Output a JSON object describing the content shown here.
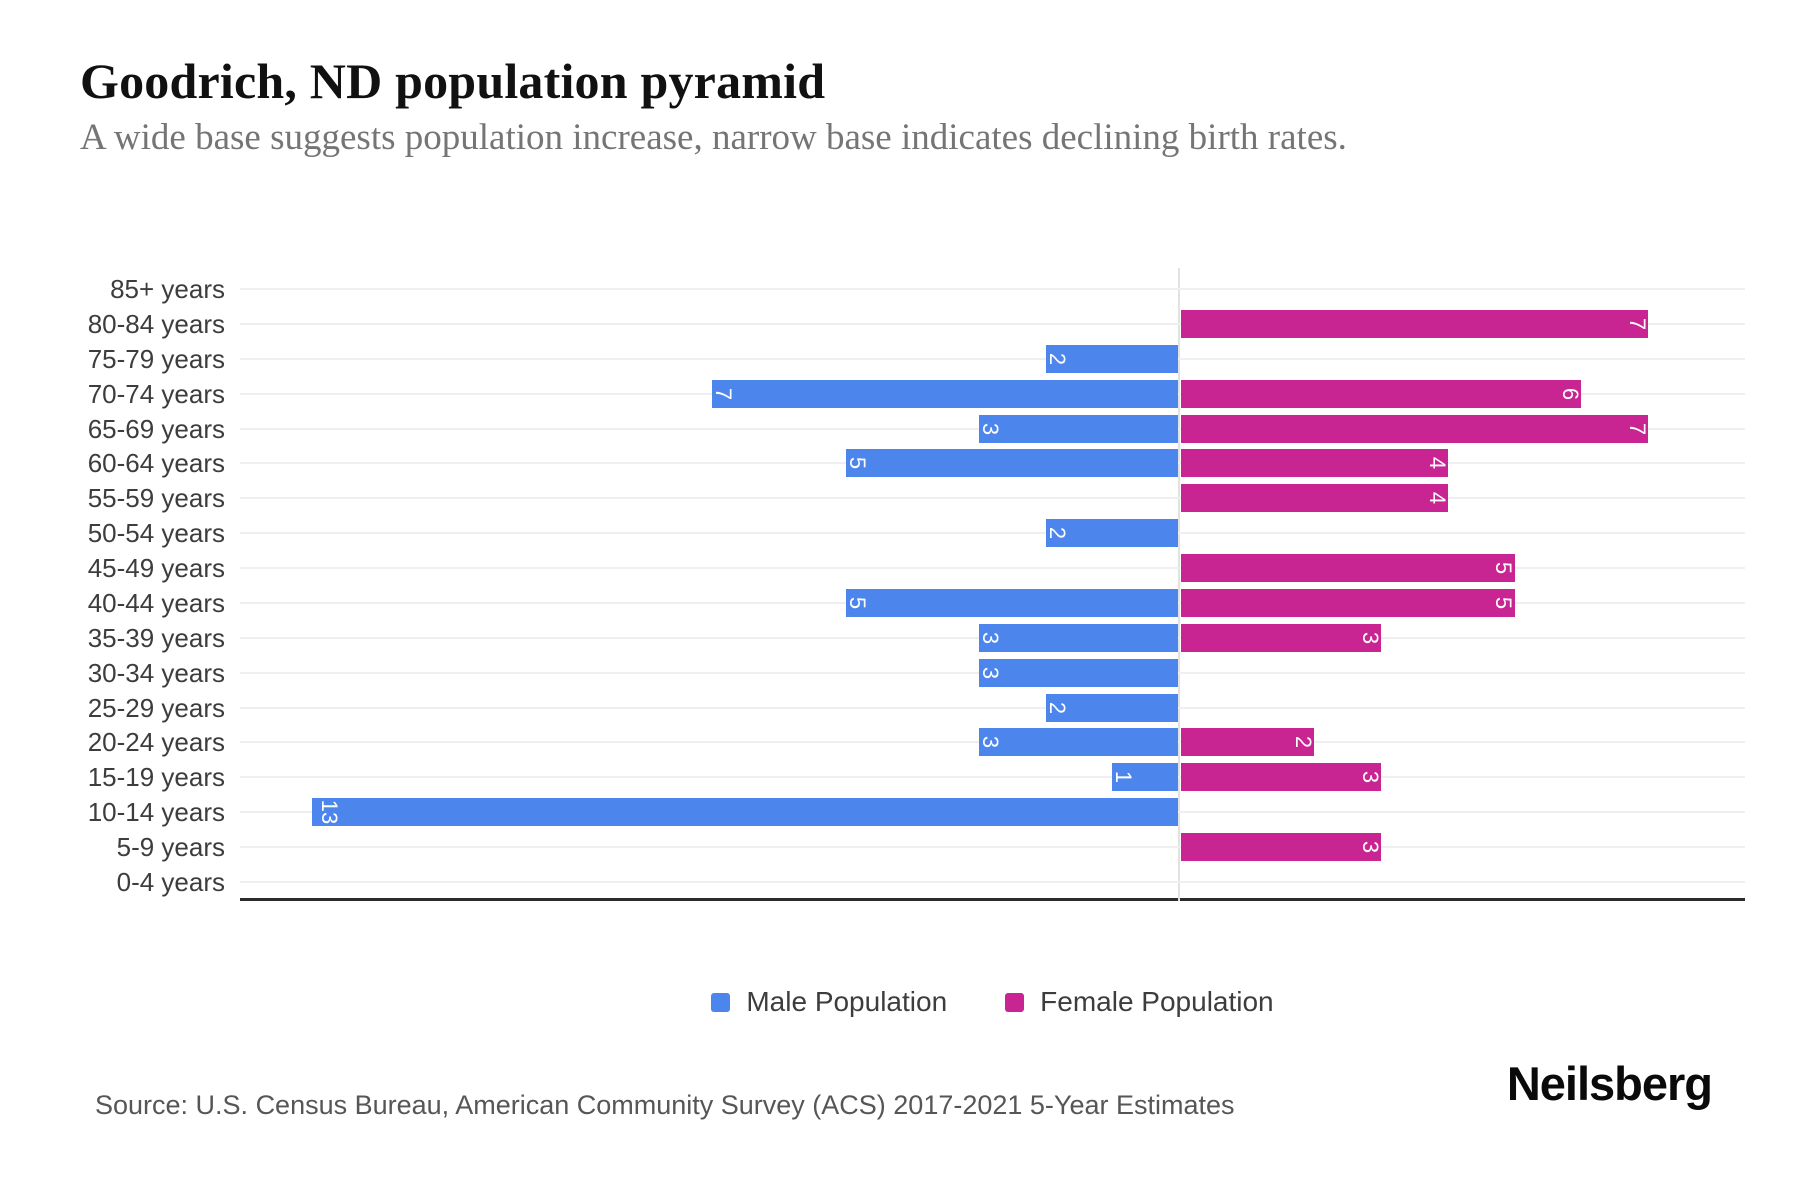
{
  "title": "Goodrich, ND population pyramid",
  "subtitle": "A wide base suggests population increase, narrow base indicates declining birth rates.",
  "colors": {
    "male": "#4C86EC",
    "female": "#C92592",
    "axis": "#2b2b2b",
    "gridline": "#efefef",
    "center_line": "#e2e2e2"
  },
  "legend": {
    "items": [
      {
        "label": "Male Population",
        "color": "#4C86EC"
      },
      {
        "label": "Female Population",
        "color": "#C92592"
      }
    ]
  },
  "footer": {
    "source": "Source: U.S. Census Bureau, American Community Survey (ACS) 2017-2021 5-Year Estimates",
    "brand": "Neilsberg"
  },
  "chart_data": {
    "type": "bar",
    "subtype": "population-pyramid",
    "orientation": "horizontal",
    "title": "Goodrich, ND population pyramid",
    "categories": [
      "85+ years",
      "80-84 years",
      "75-79 years",
      "70-74 years",
      "65-69 years",
      "60-64 years",
      "55-59 years",
      "50-54 years",
      "45-49 years",
      "40-44 years",
      "35-39 years",
      "30-34 years",
      "25-29 years",
      "20-24 years",
      "15-19 years",
      "10-14 years",
      "5-9 years",
      "0-4 years"
    ],
    "series": [
      {
        "name": "Male Population",
        "color": "#4C86EC",
        "side": "left",
        "values": [
          0,
          0,
          2,
          7,
          3,
          5,
          0,
          2,
          0,
          5,
          3,
          3,
          2,
          3,
          1,
          13,
          0,
          0
        ]
      },
      {
        "name": "Female Population",
        "color": "#C92592",
        "side": "right",
        "values": [
          0,
          7,
          0,
          6,
          7,
          4,
          4,
          0,
          5,
          5,
          3,
          0,
          0,
          2,
          3,
          0,
          3,
          0
        ]
      }
    ],
    "value_label_style": "white, rotated 90deg, inside outer end of bar",
    "grid": "light horizontal line per category, light vertical zero line, dark bottom axis",
    "legend_position": "bottom-center"
  }
}
